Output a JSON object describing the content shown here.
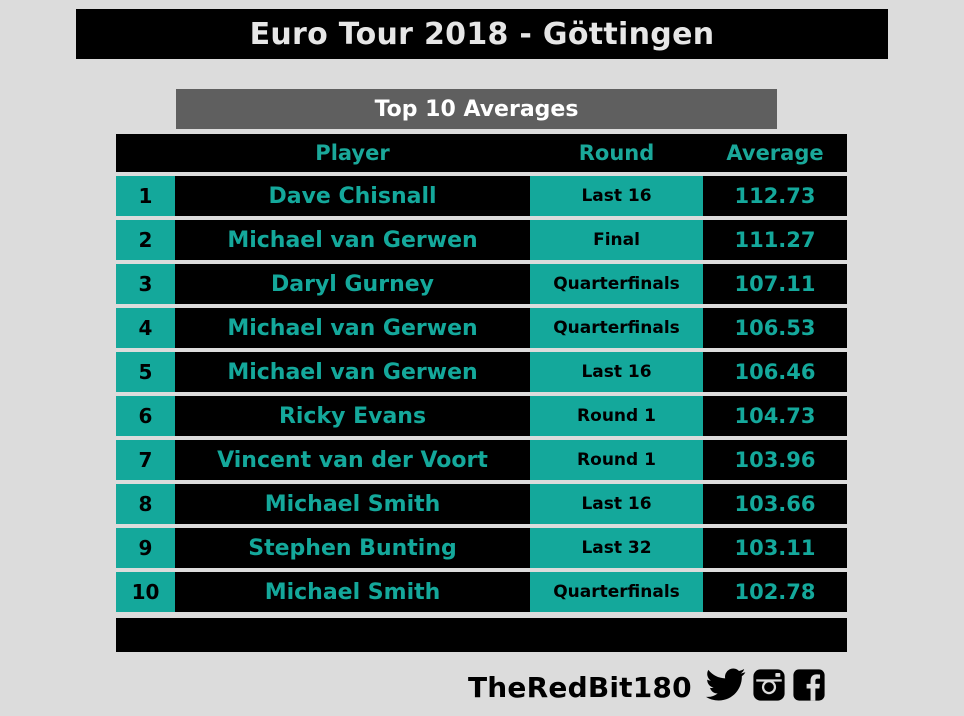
{
  "title": "Euro Tour 2018 - Göttingen",
  "subtitle": "Top 10 Averages",
  "headers": {
    "rank": "",
    "player": "Player",
    "round": "Round",
    "average": "Average"
  },
  "rows": [
    {
      "rank": "1",
      "player": "Dave Chisnall",
      "round": "Last 16",
      "average": "112.73"
    },
    {
      "rank": "2",
      "player": "Michael van Gerwen",
      "round": "Final",
      "average": "111.27"
    },
    {
      "rank": "3",
      "player": "Daryl Gurney",
      "round": "Quarterfinals",
      "average": "107.11"
    },
    {
      "rank": "4",
      "player": "Michael van Gerwen",
      "round": "Quarterfinals",
      "average": "106.53"
    },
    {
      "rank": "5",
      "player": "Michael van Gerwen",
      "round": "Last 16",
      "average": "106.46"
    },
    {
      "rank": "6",
      "player": "Ricky Evans",
      "round": "Round 1",
      "average": "104.73"
    },
    {
      "rank": "7",
      "player": "Vincent van der Voort",
      "round": "Round 1",
      "average": "103.96"
    },
    {
      "rank": "8",
      "player": "Michael Smith",
      "round": "Last 16",
      "average": "103.66"
    },
    {
      "rank": "9",
      "player": "Stephen Bunting",
      "round": "Last 32",
      "average": "103.11"
    },
    {
      "rank": "10",
      "player": "Michael Smith",
      "round": "Quarterfinals",
      "average": "102.78"
    }
  ],
  "brand": {
    "name": "TheRedBit180",
    "icons": [
      "twitter-icon",
      "instagram-icon",
      "facebook-icon"
    ]
  },
  "colors": {
    "accent": "#14a89b",
    "header_bg": "#000000",
    "subtitle_bg": "#5f5f5f",
    "page_bg": "#dcdcdc"
  }
}
